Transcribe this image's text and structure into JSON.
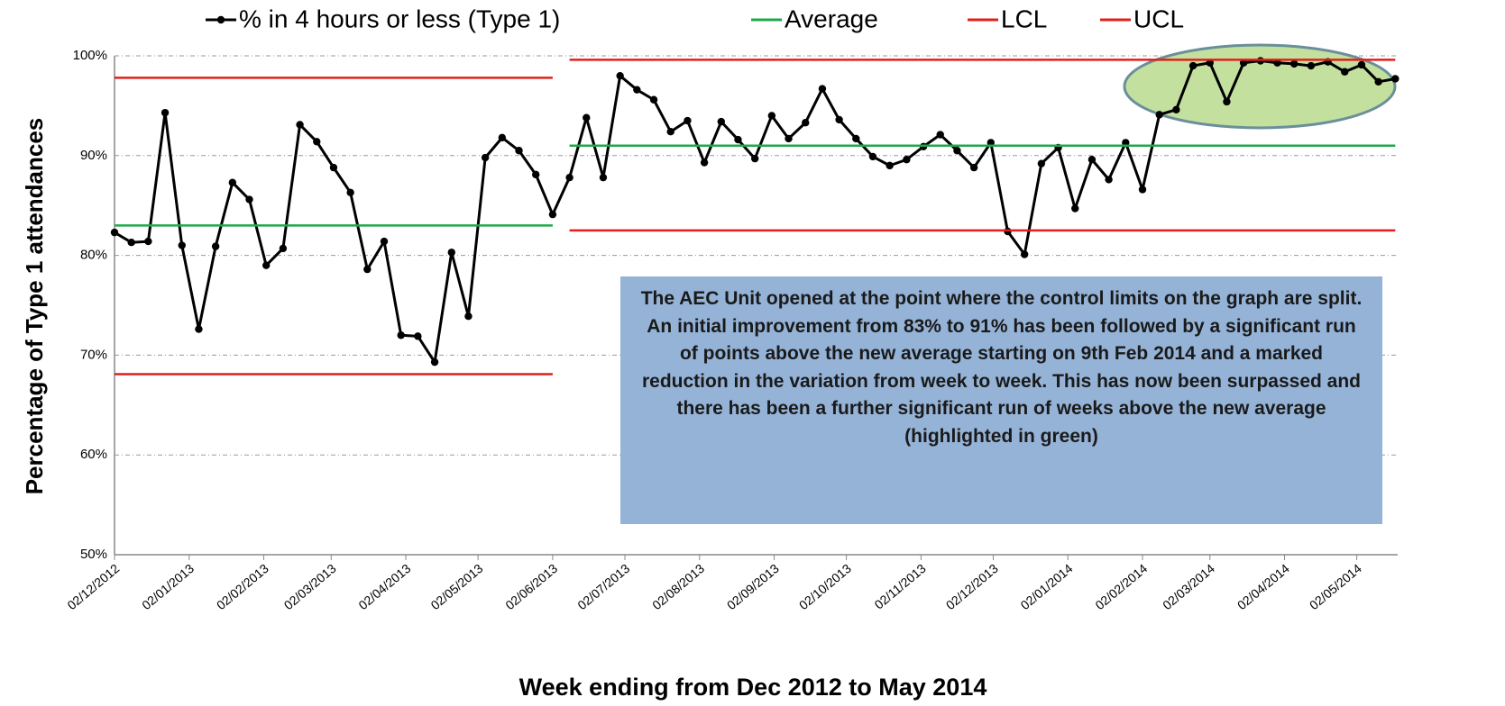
{
  "chart_data": {
    "type": "line",
    "x_title": "Week ending from Dec 2012 to May 2014",
    "y_title": "Percentage of Type 1 attendances",
    "annotation": "The AEC Unit opened at the point where the control limits on the graph are split. An initial improvement from 83% to 91% has been followed by a significant run of points above the new average starting on 9th Feb 2014 and a marked reduction in the variation from week to week. This has now been surpassed and there has been a further significant run of weeks above the new average (highlighted in green)",
    "x": [
      "02/12/2012",
      "09/12/2012",
      "16/12/2012",
      "23/12/2012",
      "30/12/2012",
      "06/01/2013",
      "13/01/2013",
      "20/01/2013",
      "27/01/2013",
      "03/02/2013",
      "10/02/2013",
      "17/02/2013",
      "24/02/2013",
      "03/03/2013",
      "10/03/2013",
      "17/03/2013",
      "24/03/2013",
      "31/03/2013",
      "07/04/2013",
      "14/04/2013",
      "21/04/2013",
      "28/04/2013",
      "05/05/2013",
      "12/05/2013",
      "19/05/2013",
      "26/05/2013",
      "02/06/2013",
      "09/06/2013",
      "16/06/2013",
      "23/06/2013",
      "30/06/2013",
      "07/07/2013",
      "14/07/2013",
      "21/07/2013",
      "28/07/2013",
      "04/08/2013",
      "11/08/2013",
      "18/08/2013",
      "25/08/2013",
      "01/09/2013",
      "08/09/2013",
      "15/09/2013",
      "22/09/2013",
      "29/09/2013",
      "06/10/2013",
      "13/10/2013",
      "20/10/2013",
      "27/10/2013",
      "03/11/2013",
      "10/11/2013",
      "17/11/2013",
      "24/11/2013",
      "01/12/2013",
      "08/12/2013",
      "15/12/2013",
      "22/12/2013",
      "29/12/2013",
      "05/01/2014",
      "12/01/2014",
      "19/01/2014",
      "26/01/2014",
      "02/02/2014",
      "09/02/2014",
      "16/02/2014",
      "23/02/2014",
      "02/03/2014",
      "09/03/2014",
      "16/03/2014",
      "23/03/2014",
      "30/03/2014",
      "06/04/2014",
      "13/04/2014",
      "20/04/2014",
      "27/04/2014",
      "04/05/2014",
      "11/05/2014",
      "18/05/2014"
    ],
    "series": [
      {
        "name": "% in 4 hours or less (Type 1)",
        "color": "#000000",
        "markers": true,
        "values": [
          82.3,
          81.3,
          81.4,
          94.3,
          81.0,
          72.6,
          80.9,
          87.3,
          85.6,
          79.0,
          80.7,
          93.1,
          91.4,
          88.8,
          86.3,
          78.6,
          81.4,
          72.0,
          71.9,
          69.3,
          80.3,
          73.9,
          89.8,
          91.8,
          90.5,
          88.1,
          84.1,
          87.8,
          93.8,
          87.8,
          98.0,
          96.6,
          95.6,
          92.4,
          93.5,
          89.3,
          93.4,
          91.6,
          89.7,
          94.0,
          91.7,
          93.3,
          96.7,
          93.6,
          91.7,
          89.9,
          89.0,
          89.6,
          90.9,
          92.1,
          90.5,
          88.8,
          91.3,
          82.4,
          80.1,
          89.2,
          90.8,
          84.7,
          89.6,
          87.6,
          91.3,
          86.6,
          94.1,
          94.6,
          99.0,
          99.3,
          95.4,
          99.3,
          99.5,
          99.3,
          99.2,
          99.0,
          99.4,
          98.4,
          99.1,
          97.4,
          97.7
        ]
      },
      {
        "name": "Average",
        "color": "#1fa84a",
        "segmented": true,
        "values": [
          83,
          83,
          83,
          83,
          83,
          83,
          83,
          83,
          83,
          83,
          83,
          83,
          83,
          83,
          83,
          83,
          83,
          83,
          83,
          83,
          83,
          83,
          83,
          83,
          83,
          83,
          83,
          91,
          91,
          91,
          91,
          91,
          91,
          91,
          91,
          91,
          91,
          91,
          91,
          91,
          91,
          91,
          91,
          91,
          91,
          91,
          91,
          91,
          91,
          91,
          91,
          91,
          91,
          91,
          91,
          91,
          91,
          91,
          91,
          91,
          91,
          91,
          91,
          91,
          91,
          91,
          91,
          91,
          91,
          91,
          91,
          91,
          91,
          91,
          91,
          91,
          91
        ]
      },
      {
        "name": "LCL",
        "color": "#e0201b",
        "segmented": true,
        "values": [
          68.1,
          68.1,
          68.1,
          68.1,
          68.1,
          68.1,
          68.1,
          68.1,
          68.1,
          68.1,
          68.1,
          68.1,
          68.1,
          68.1,
          68.1,
          68.1,
          68.1,
          68.1,
          68.1,
          68.1,
          68.1,
          68.1,
          68.1,
          68.1,
          68.1,
          68.1,
          68.1,
          82.5,
          82.5,
          82.5,
          82.5,
          82.5,
          82.5,
          82.5,
          82.5,
          82.5,
          82.5,
          82.5,
          82.5,
          82.5,
          82.5,
          82.5,
          82.5,
          82.5,
          82.5,
          82.5,
          82.5,
          82.5,
          82.5,
          82.5,
          82.5,
          82.5,
          82.5,
          82.5,
          82.5,
          82.5,
          82.5,
          82.5,
          82.5,
          82.5,
          82.5,
          82.5,
          82.5,
          82.5,
          82.5,
          82.5,
          82.5,
          82.5,
          82.5,
          82.5,
          82.5,
          82.5,
          82.5,
          82.5,
          82.5,
          82.5,
          82.5
        ]
      },
      {
        "name": "UCL",
        "color": "#e0201b",
        "segmented": true,
        "values": [
          97.8,
          97.8,
          97.8,
          97.8,
          97.8,
          97.8,
          97.8,
          97.8,
          97.8,
          97.8,
          97.8,
          97.8,
          97.8,
          97.8,
          97.8,
          97.8,
          97.8,
          97.8,
          97.8,
          97.8,
          97.8,
          97.8,
          97.8,
          97.8,
          97.8,
          97.8,
          97.8,
          99.6,
          99.6,
          99.6,
          99.6,
          99.6,
          99.6,
          99.6,
          99.6,
          99.6,
          99.6,
          99.6,
          99.6,
          99.6,
          99.6,
          99.6,
          99.6,
          99.6,
          99.6,
          99.6,
          99.6,
          99.6,
          99.6,
          99.6,
          99.6,
          99.6,
          99.6,
          99.6,
          99.6,
          99.6,
          99.6,
          99.6,
          99.6,
          99.6,
          99.6,
          99.6,
          99.6,
          99.6,
          99.6,
          99.6,
          99.6,
          99.6,
          99.6,
          99.6,
          99.6,
          99.6,
          99.6,
          99.6,
          99.6,
          99.6,
          99.6
        ]
      }
    ],
    "xlim": [
      "02/12/2012",
      "19/05/2014"
    ],
    "xticks": [
      "02/12/2012",
      "02/01/2013",
      "02/02/2013",
      "02/03/2013",
      "02/04/2013",
      "02/05/2013",
      "02/06/2013",
      "02/07/2013",
      "02/08/2013",
      "02/09/2013",
      "02/10/2013",
      "02/11/2013",
      "02/12/2013",
      "02/01/2014",
      "02/02/2014",
      "02/03/2014",
      "02/04/2014",
      "02/05/2014"
    ],
    "ylim": [
      50,
      100
    ],
    "yticks": [
      {
        "value": 50,
        "label": "50%"
      },
      {
        "value": 60,
        "label": "60%"
      },
      {
        "value": 70,
        "label": "70%"
      },
      {
        "value": 80,
        "label": "80%"
      },
      {
        "value": 90,
        "label": "90%"
      },
      {
        "value": 100,
        "label": "100%"
      }
    ],
    "grid": true,
    "legend": "top"
  }
}
